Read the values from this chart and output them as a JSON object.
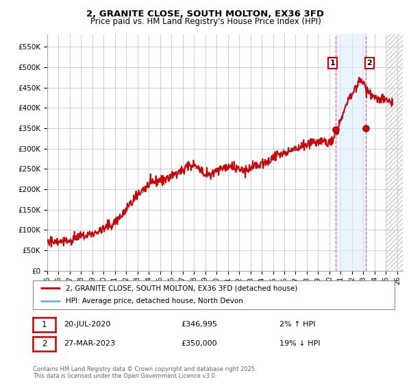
{
  "title": "2, GRANITE CLOSE, SOUTH MOLTON, EX36 3FD",
  "subtitle": "Price paid vs. HM Land Registry's House Price Index (HPI)",
  "xlim_start": 1995.0,
  "xlim_end": 2026.5,
  "ylim": [
    0,
    580000
  ],
  "yticks": [
    0,
    50000,
    100000,
    150000,
    200000,
    250000,
    300000,
    350000,
    400000,
    450000,
    500000,
    550000
  ],
  "ytick_labels": [
    "£0",
    "£50K",
    "£100K",
    "£150K",
    "£200K",
    "£250K",
    "£300K",
    "£350K",
    "£400K",
    "£450K",
    "£500K",
    "£550K"
  ],
  "xtick_years": [
    1995,
    1996,
    1997,
    1998,
    1999,
    2000,
    2001,
    2002,
    2003,
    2004,
    2005,
    2006,
    2007,
    2008,
    2009,
    2010,
    2011,
    2012,
    2013,
    2014,
    2015,
    2016,
    2017,
    2018,
    2019,
    2020,
    2021,
    2022,
    2023,
    2024,
    2025,
    2026
  ],
  "xtick_labels": [
    "95",
    "96",
    "97",
    "98",
    "99",
    "00",
    "01",
    "02",
    "03",
    "04",
    "05",
    "06",
    "07",
    "08",
    "09",
    "10",
    "11",
    "12",
    "13",
    "14",
    "15",
    "16",
    "17",
    "18",
    "19",
    "20",
    "21",
    "22",
    "23",
    "24",
    "25",
    "26"
  ],
  "hpi_color": "#7aafda",
  "price_color": "#cc0000",
  "sale1_x": 2020.54,
  "sale1_y": 346995,
  "sale2_x": 2023.24,
  "sale2_y": 350000,
  "shade_x1": 2020.54,
  "shade_x2": 2023.24,
  "legend_line1": "2, GRANITE CLOSE, SOUTH MOLTON, EX36 3FD (detached house)",
  "legend_line2": "HPI: Average price, detached house, North Devon",
  "annotation1_date": "20-JUL-2020",
  "annotation1_price": "£346,995",
  "annotation1_hpi": "2% ↑ HPI",
  "annotation2_date": "27-MAR-2023",
  "annotation2_price": "£350,000",
  "annotation2_hpi": "19% ↓ HPI",
  "footer": "Contains HM Land Registry data © Crown copyright and database right 2025.\nThis data is licensed under the Open Government Licence v3.0.",
  "background_color": "#ffffff",
  "grid_color": "#bbbbbb",
  "hatch_color": "#cccccc"
}
